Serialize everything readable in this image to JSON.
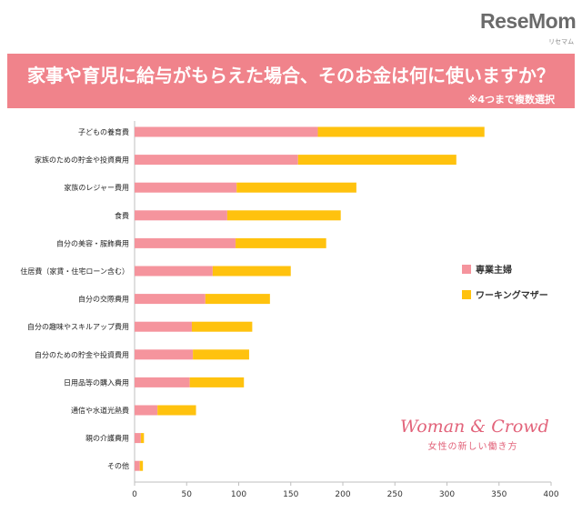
{
  "header": {
    "logo": "ReseMom",
    "logo_sup": "リセマム"
  },
  "brand": {
    "name": "Woman & Crowd",
    "tagline": "女性の新しい働き方"
  },
  "colors": {
    "banner": "#f0838b",
    "series_1": "#f5949d",
    "series_2": "#ffc20e"
  },
  "chart_data": {
    "type": "bar",
    "orientation": "horizontal",
    "stacked": true,
    "title": "家事や育児に給与がもらえた場合、そのお金は何に使いますか？",
    "subtitle": "※4つまで複数選択",
    "categories": [
      "子どもの養育費",
      "家族のための貯金や投資費用",
      "家族のレジャー費用",
      "食費",
      "自分の美容・服飾費用",
      "住居費（家賃・住宅ローン含む）",
      "自分の交際費用",
      "自分の趣味やスキルアップ費用",
      "自分のための貯金や投資費用",
      "日用品等の購入費用",
      "通信や水道光熱費",
      "親の介護費用",
      "その他"
    ],
    "series": [
      {
        "name": "専業主婦",
        "values": [
          176,
          157,
          98,
          89,
          97,
          75,
          68,
          55,
          56,
          53,
          22,
          6,
          5
        ]
      },
      {
        "name": "ワーキングマザー",
        "values": [
          160,
          152,
          115,
          109,
          87,
          75,
          62,
          58,
          54,
          52,
          37,
          3,
          3
        ]
      }
    ],
    "xlim": [
      0,
      400
    ],
    "xticks": [
      0,
      50,
      100,
      150,
      200,
      250,
      300,
      350,
      400
    ],
    "legend_position": "right",
    "grid": false
  }
}
